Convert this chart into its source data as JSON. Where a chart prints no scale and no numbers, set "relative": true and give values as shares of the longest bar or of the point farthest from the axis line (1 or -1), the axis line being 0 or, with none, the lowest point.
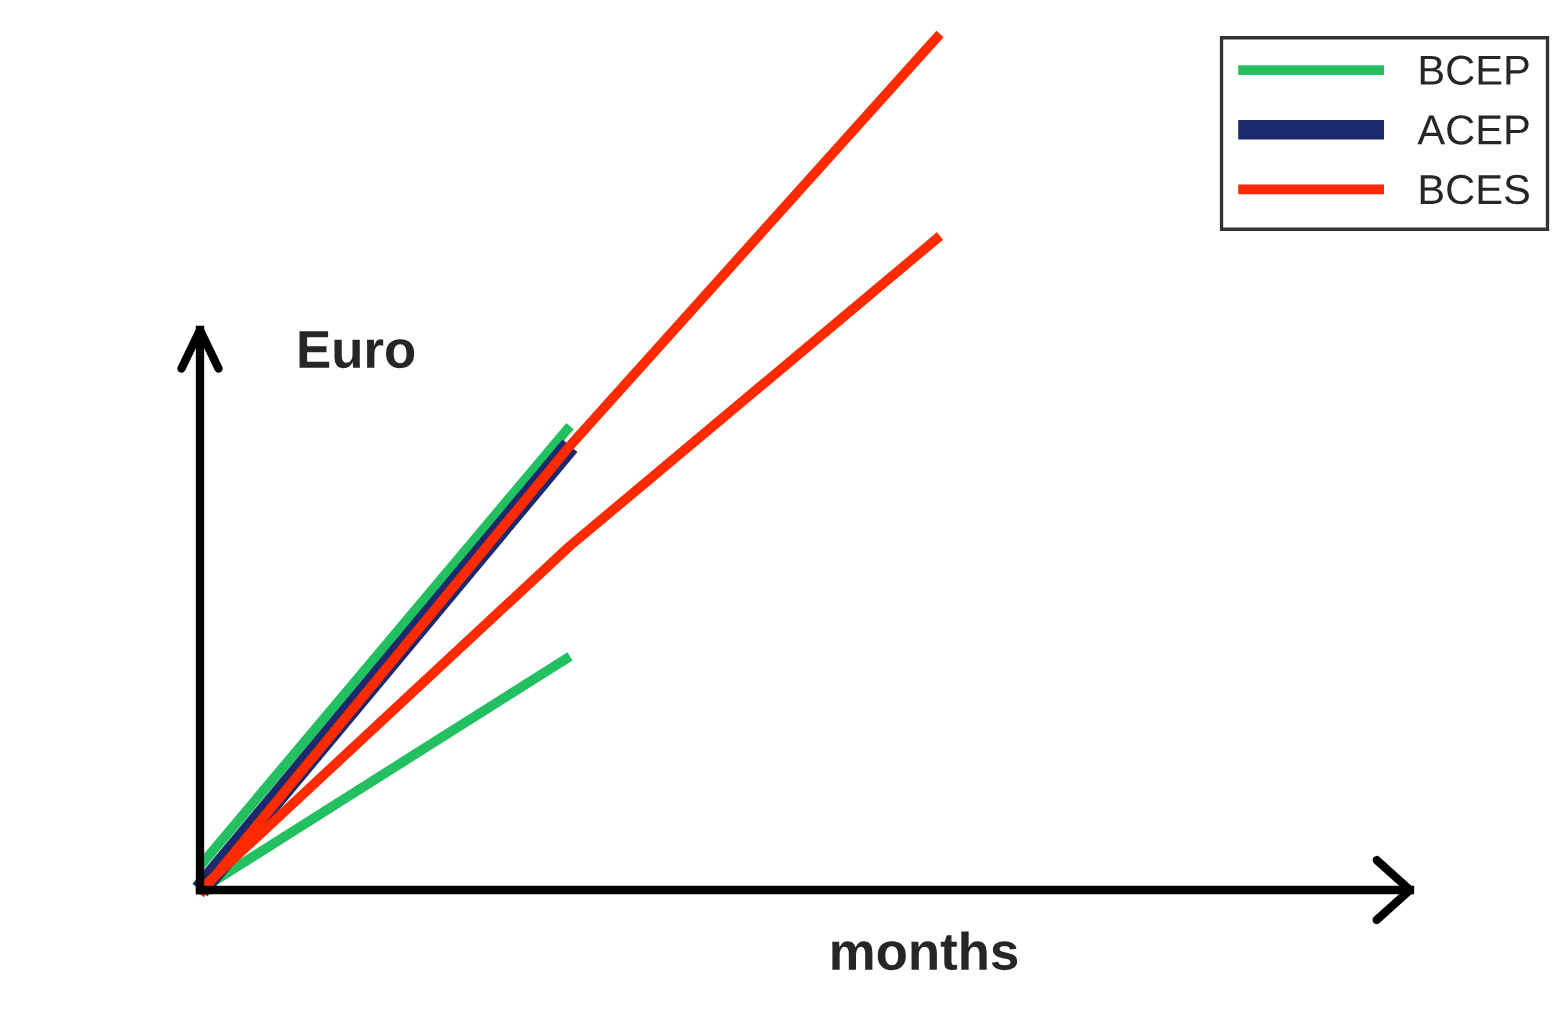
{
  "chart_data": {
    "type": "line",
    "relative": true,
    "xlabel": "months",
    "ylabel": "Euro",
    "legend": "top right",
    "marker": "none",
    "line_style": "solid",
    "categories": [
      null,
      null,
      null
    ],
    "series": [
      {
        "name": "BCEP",
        "color": "#22c060",
        "values": [
          0.028,
          0.542,
          null
        ]
      },
      {
        "color": "#22c060",
        "values": [
          0,
          0.273,
          null
        ]
      },
      {
        "name": "ACEP",
        "color": "#1a2a6c",
        "values": [
          0,
          0.519,
          null
        ]
      },
      {
        "name": "BCES",
        "color": "#ff2a00",
        "values": [
          -0.005,
          0.519,
          1
        ]
      },
      {
        "color": "#ff2a00",
        "values": [
          0,
          0.402,
          0.764
        ]
      }
    ]
  }
}
